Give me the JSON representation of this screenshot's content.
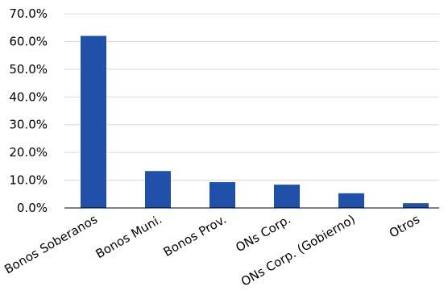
{
  "chart_data": {
    "type": "bar",
    "categories": [
      "Bonos Soberanos",
      "Bonos Muni.",
      "Bonos Prov.",
      "ONs Corp.",
      "ONs Corp. (Gobierno)",
      "Otros"
    ],
    "values": [
      62.0,
      13.3,
      9.3,
      8.4,
      5.3,
      1.7
    ],
    "ylim": [
      0,
      70
    ],
    "y_ticks": [
      0,
      10,
      20,
      30,
      40,
      50,
      60,
      70
    ],
    "y_tick_format": "percent_1dp",
    "y_tick_labels": [
      "0.0%",
      "10.0%",
      "20.0%",
      "30.0%",
      "40.0%",
      "50.0%",
      "60.0%",
      "70.0%"
    ],
    "title": "",
    "xlabel": "",
    "ylabel": "",
    "grid": true,
    "legend": "none",
    "bar_color": "#2150a8",
    "grid_color": "#d9d9d9"
  }
}
